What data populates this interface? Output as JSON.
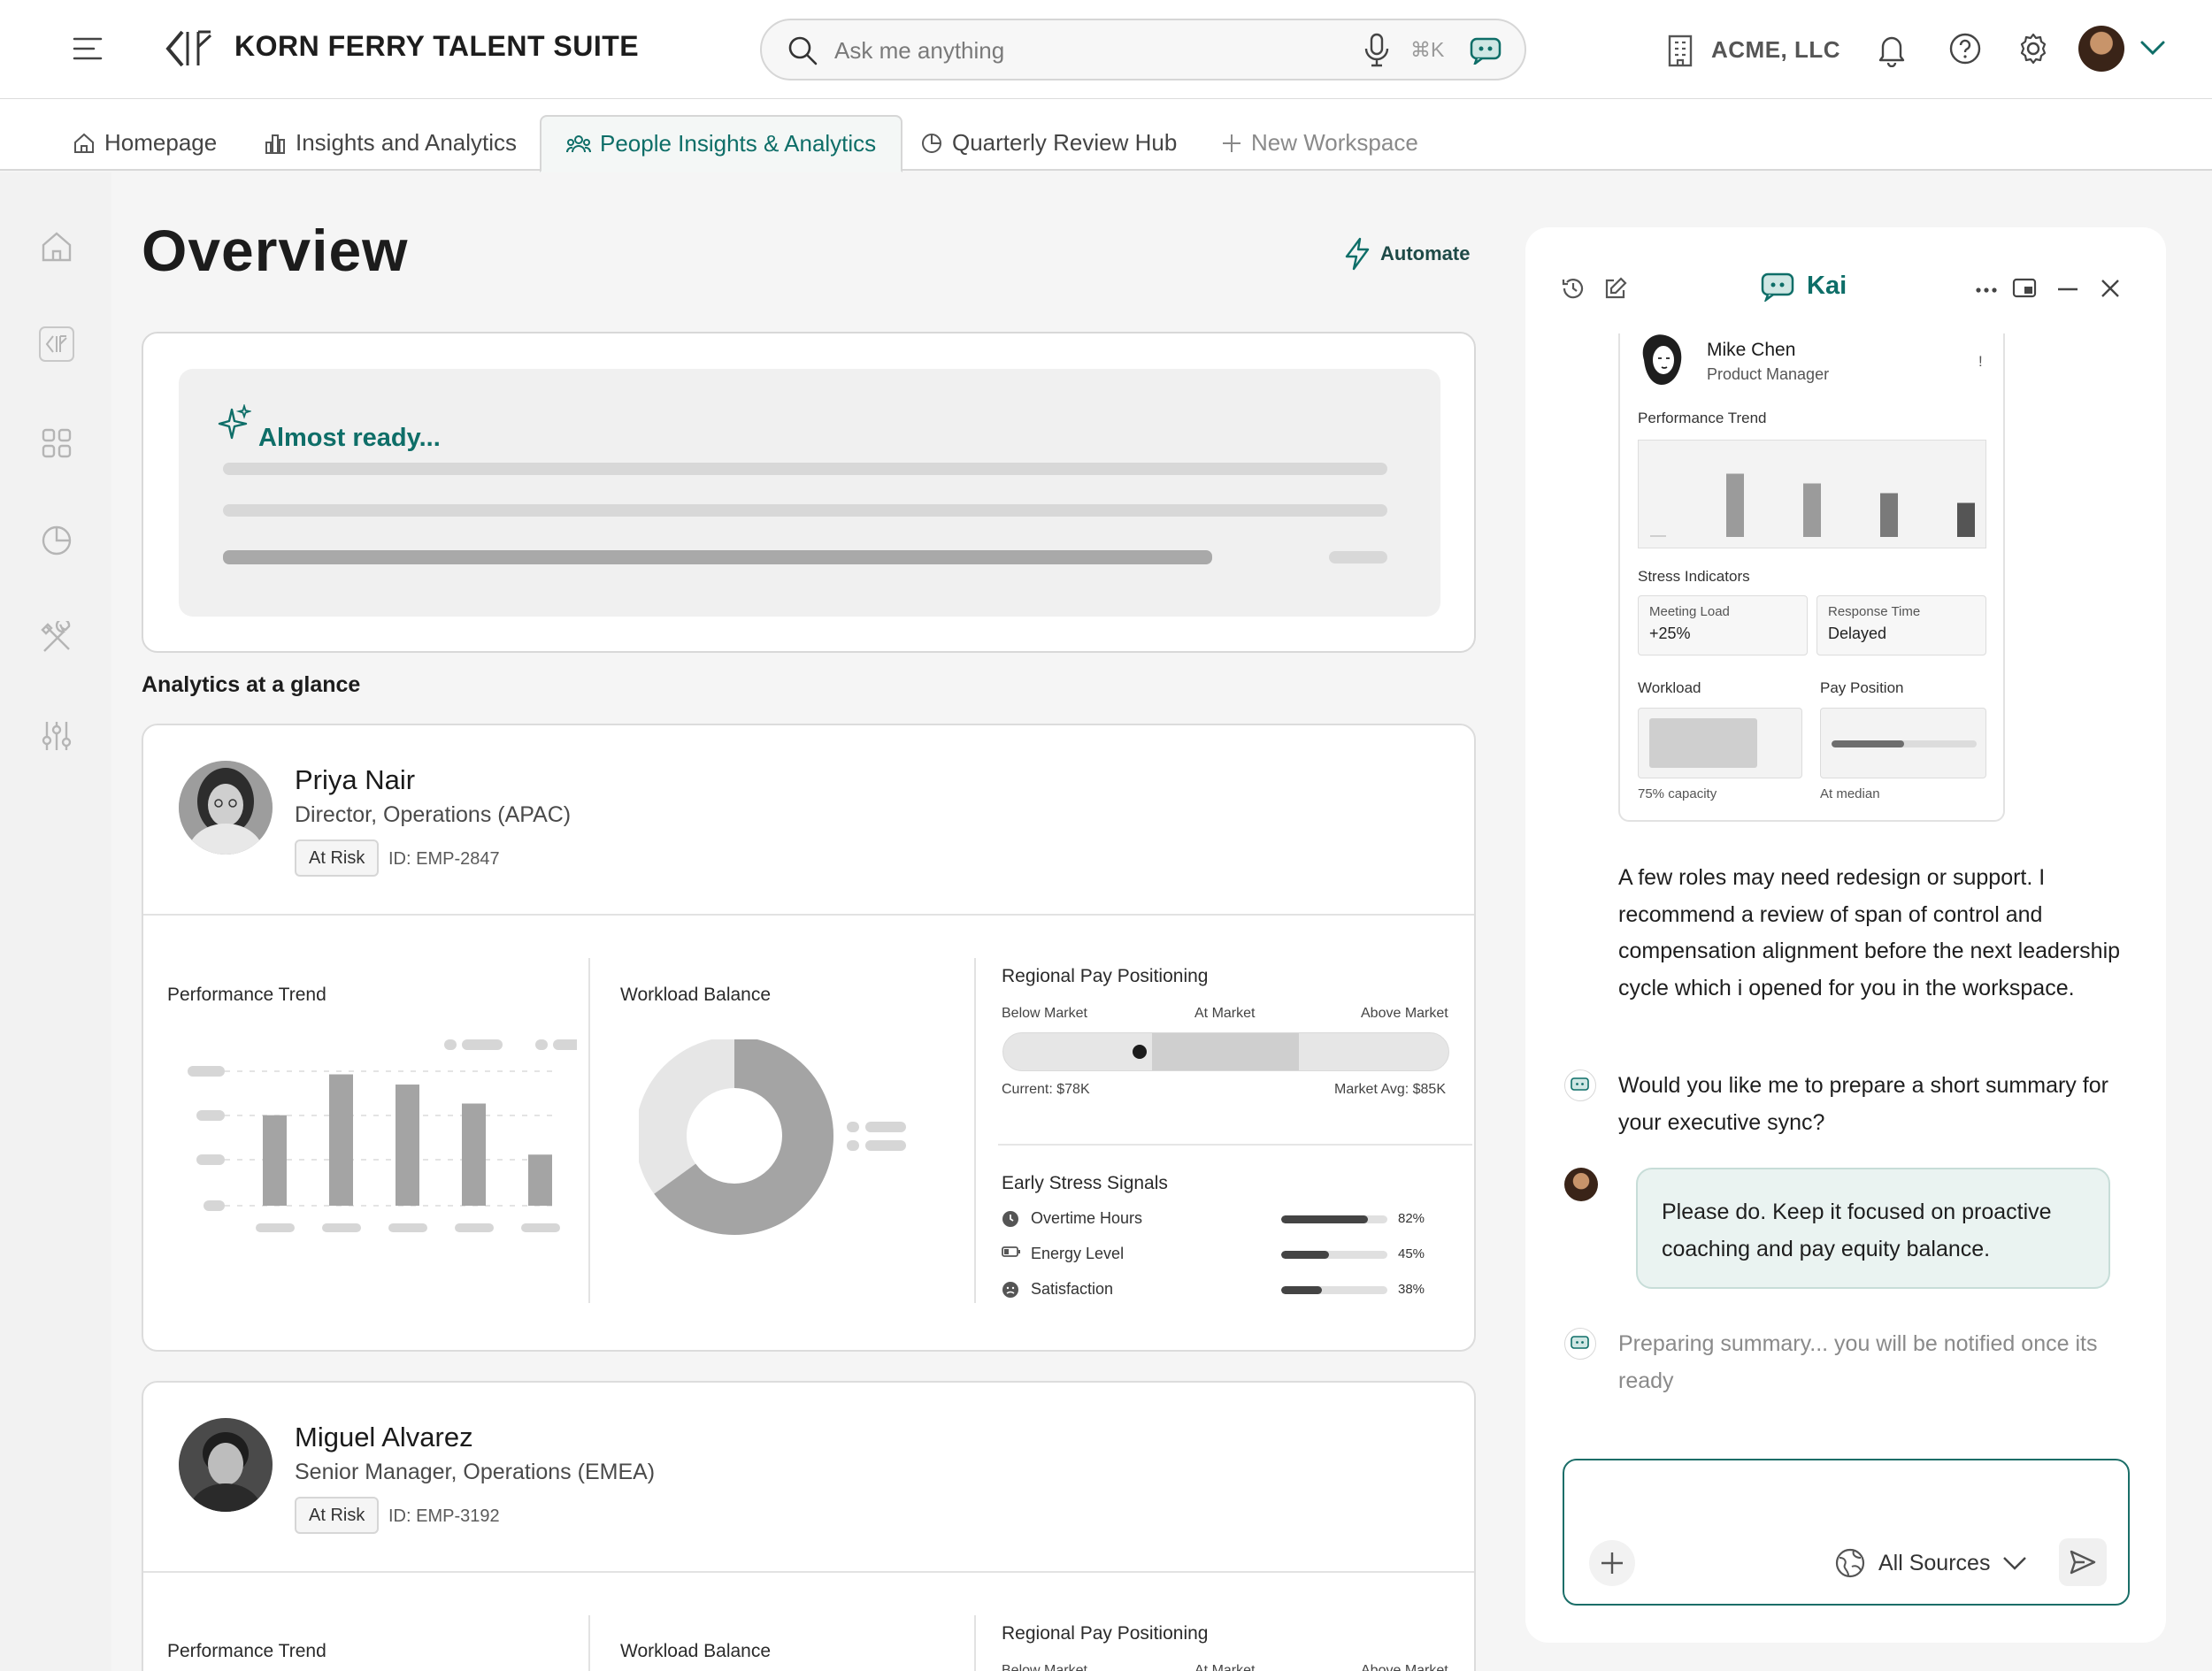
{
  "header": {
    "brand": "KORN FERRY TALENT SUITE",
    "search_placeholder": "Ask me anything",
    "shortcut": "⌘K",
    "company": "ACME, LLC"
  },
  "tabs": [
    {
      "label": "Homepage",
      "icon": "home-icon"
    },
    {
      "label": "Insights and Analytics",
      "icon": "bar-chart-icon"
    },
    {
      "label": "People Insights & Analytics",
      "icon": "people-icon",
      "active": true
    },
    {
      "label": "Quarterly Review Hub",
      "icon": "pie-icon"
    },
    {
      "label": "New Workspace",
      "icon": "plus-icon"
    }
  ],
  "main": {
    "title": "Overview",
    "automate_label": "Automate",
    "ready_text": "Almost ready...",
    "glance_title": "Analytics at a glance"
  },
  "employees": [
    {
      "name": "Priya Nair",
      "role": "Director, Operations (APAC)",
      "status": "At Risk",
      "id": "ID: EMP-2847",
      "perf_label": "Performance Trend",
      "perf_bars": [
        0.62,
        0.9,
        0.83,
        0.7,
        0.35
      ],
      "workload_label": "Workload Balance",
      "workload_share": 0.65,
      "pay_label": "Regional Pay Positioning",
      "pay_scale": [
        "Below Market",
        "At Market",
        "Above Market"
      ],
      "pay_current": "Current: $78K",
      "pay_market": "Market Avg: $85K",
      "stress_label": "Early Stress Signals",
      "stress": [
        {
          "label": "Overtime Hours",
          "value": "82%",
          "fraction": 0.82,
          "icon": "clock-icon"
        },
        {
          "label": "Energy Level",
          "value": "45%",
          "fraction": 0.45,
          "icon": "battery-icon"
        },
        {
          "label": "Satisfaction",
          "value": "38%",
          "fraction": 0.38,
          "icon": "frown-icon"
        }
      ]
    },
    {
      "name": "Miguel Alvarez",
      "role": "Senior Manager, Operations (EMEA)",
      "status": "At Risk",
      "id": "ID: EMP-3192",
      "perf_label": "Performance Trend",
      "workload_label": "Workload Balance",
      "pay_label": "Regional Pay Positioning",
      "pay_scale": [
        "Below Market",
        "At Market",
        "Above Market"
      ]
    }
  ],
  "kai": {
    "title": "Kai",
    "card": {
      "name": "Mike Chen",
      "role": "Product Manager",
      "flag": "!",
      "perf_label": "Performance Trend",
      "perf_bars": [
        0.1,
        0.65,
        0.55,
        0.45,
        0.35
      ],
      "stress_label": "Stress Indicators",
      "meeting_label": "Meeting Load",
      "meeting_value": "+25%",
      "response_label": "Response Time",
      "response_value": "Delayed",
      "workload_label": "Workload",
      "workload_caption": "75% capacity",
      "workload_fraction": 0.75,
      "pay_label": "Pay Position",
      "pay_caption": "At median",
      "pay_fraction": 0.5
    },
    "msg1": "A few roles may need redesign or support. I recommend a review of span of control and compensation alignment before the next leadership cycle which i opened for you in the workspace.",
    "msg2": "Would you like me to prepare a short summary for your executive sync?",
    "user_msg": "Please do. Keep it focused on proactive coaching and pay equity balance.",
    "status_msg": "Preparing summary... you will be notified once its ready",
    "sources_label": "All Sources"
  }
}
